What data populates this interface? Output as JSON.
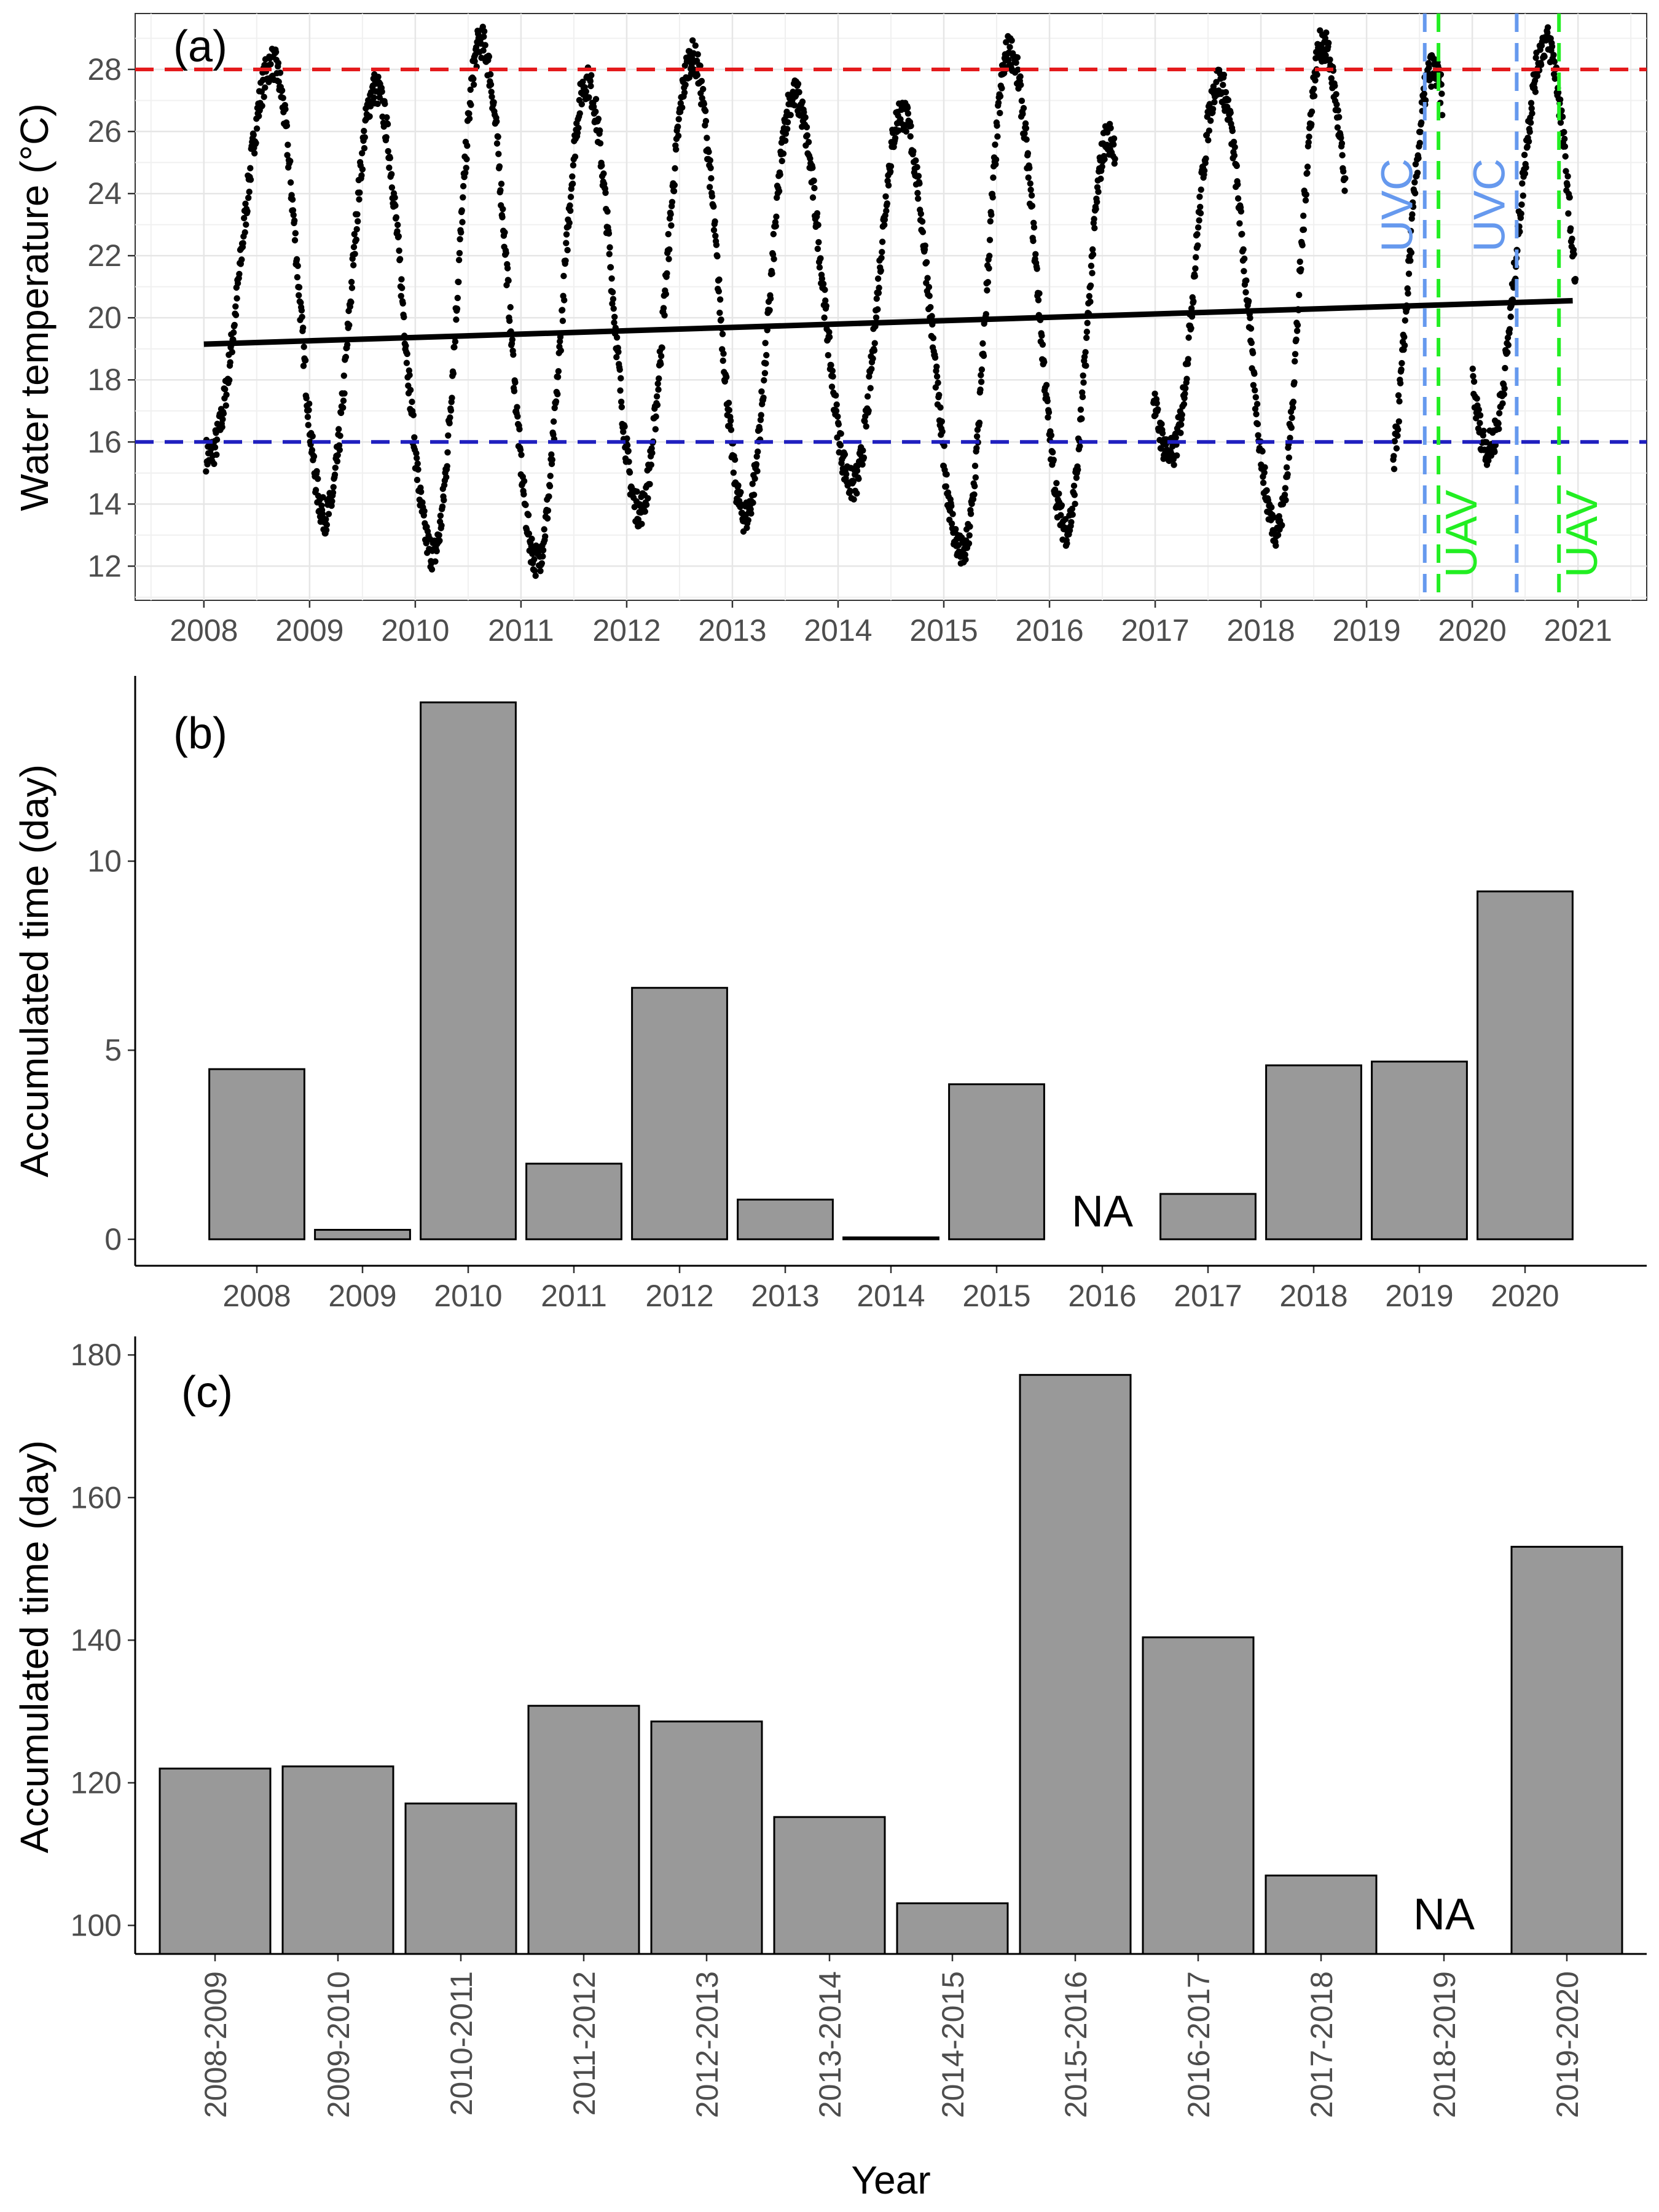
{
  "chart_data": [
    {
      "panel": "(a)",
      "type": "scatter",
      "ylabel": "Water temperature (°C)",
      "xlim": [
        2007.35,
        2021.65
      ],
      "ylim": [
        10.9,
        29.8
      ],
      "xticks": [
        "2008",
        "2009",
        "2010",
        "2011",
        "2012",
        "2013",
        "2014",
        "2015",
        "2016",
        "2017",
        "2018",
        "2019",
        "2020",
        "2021"
      ],
      "yticks": [
        12,
        14,
        16,
        18,
        20,
        22,
        24,
        26,
        28
      ],
      "grid": true,
      "trend_line": {
        "start": [
          2008.0,
          19.15
        ],
        "end": [
          2020.95,
          20.55
        ]
      },
      "reference_lines": [
        {
          "y": 28,
          "color": "#e41a1c",
          "style": "dashed"
        },
        {
          "y": 16,
          "color": "#1f1fbf",
          "style": "dashed"
        }
      ],
      "event_lines": [
        {
          "x": 2019.55,
          "label": "UVC",
          "color": "#6699ee"
        },
        {
          "x": 2019.68,
          "label": "UAV",
          "color": "#22ee22"
        },
        {
          "x": 2020.42,
          "label": "UVC",
          "color": "#6699ee"
        },
        {
          "x": 2020.82,
          "label": "UAV",
          "color": "#22ee22"
        }
      ],
      "seasonal_cycles": [
        {
          "year": 2008,
          "min": 13.6,
          "max": 28.2,
          "peak_at": 2008.65,
          "trough_at": 2009.15
        },
        {
          "year": 2009,
          "min": 12.4,
          "max": 27.4,
          "peak_at": 2009.62,
          "trough_at": 2010.17
        },
        {
          "year": 2010,
          "min": 12.2,
          "max": 28.9,
          "peak_at": 2010.62,
          "trough_at": 2011.15
        },
        {
          "year": 2011,
          "min": 13.8,
          "max": 27.6,
          "peak_at": 2011.62,
          "trough_at": 2012.12
        },
        {
          "year": 2012,
          "min": 13.6,
          "max": 28.4,
          "peak_at": 2012.62,
          "trough_at": 2013.12
        },
        {
          "year": 2013,
          "min": 14.6,
          "max": 27.2,
          "peak_at": 2013.58,
          "trough_at": 2014.14
        },
        {
          "year": 2014,
          "min": 12.4,
          "max": 26.6,
          "peak_at": 2014.6,
          "trough_at": 2015.18
        },
        {
          "year": 2015,
          "min": 13.2,
          "max": 28.6,
          "peak_at": 2015.62,
          "trough_at": 2016.16
        },
        {
          "year": 2016,
          "min": 15.6,
          "max": 25.8,
          "peak_at": 2016.55,
          "trough_at": 2017.15
        },
        {
          "year": 2017,
          "min": 13.2,
          "max": 27.6,
          "peak_at": 2017.6,
          "trough_at": 2018.15
        },
        {
          "year": 2018,
          "min": 13.6,
          "max": 28.8,
          "peak_at": 2018.58,
          "trough_at": 2019.15
        },
        {
          "year": 2019,
          "min": 15.8,
          "max": 28.0,
          "peak_at": 2019.62,
          "trough_at": 2020.15
        },
        {
          "year": 2020,
          "min": 15.4,
          "max": 28.9,
          "peak_at": 2020.7,
          "trough_at": 2021.2
        }
      ],
      "gaps": [
        [
          2016.62,
          2016.98
        ],
        [
          2018.8,
          2019.25
        ],
        [
          2019.72,
          2020.0
        ]
      ]
    },
    {
      "panel": "(b)",
      "type": "bar",
      "ylabel": "Accumulated time (day)",
      "categories": [
        "2008",
        "2009",
        "2010",
        "2011",
        "2012",
        "2013",
        "2014",
        "2015",
        "2016",
        "2017",
        "2018",
        "2019",
        "2020"
      ],
      "values": [
        4.5,
        0.25,
        14.2,
        2.0,
        6.65,
        1.05,
        0.05,
        4.1,
        null,
        1.2,
        4.6,
        4.7,
        9.2
      ],
      "missing_label": "NA",
      "ylim": [
        -0.7,
        14.9
      ],
      "yticks": [
        0,
        5,
        10
      ],
      "bar_color": "#999999"
    },
    {
      "panel": "(c)",
      "type": "bar",
      "ylabel": "Accumulated time (day)",
      "xlabel": "Year",
      "categories": [
        "2008-2009",
        "2009-2010",
        "2010-2011",
        "2011-2012",
        "2012-2013",
        "2013-2014",
        "2014-2015",
        "2015-2016",
        "2016-2017",
        "2017-2018",
        "2018-2019",
        "2019-2020"
      ],
      "values": [
        122,
        122.3,
        117.1,
        130.8,
        128.6,
        115.2,
        103.1,
        177.2,
        140.4,
        107,
        null,
        153.1
      ],
      "missing_label": "NA",
      "ylim": [
        96,
        182.6
      ],
      "yticks": [
        100,
        120,
        140,
        160,
        180
      ],
      "bar_color": "#999999"
    }
  ]
}
